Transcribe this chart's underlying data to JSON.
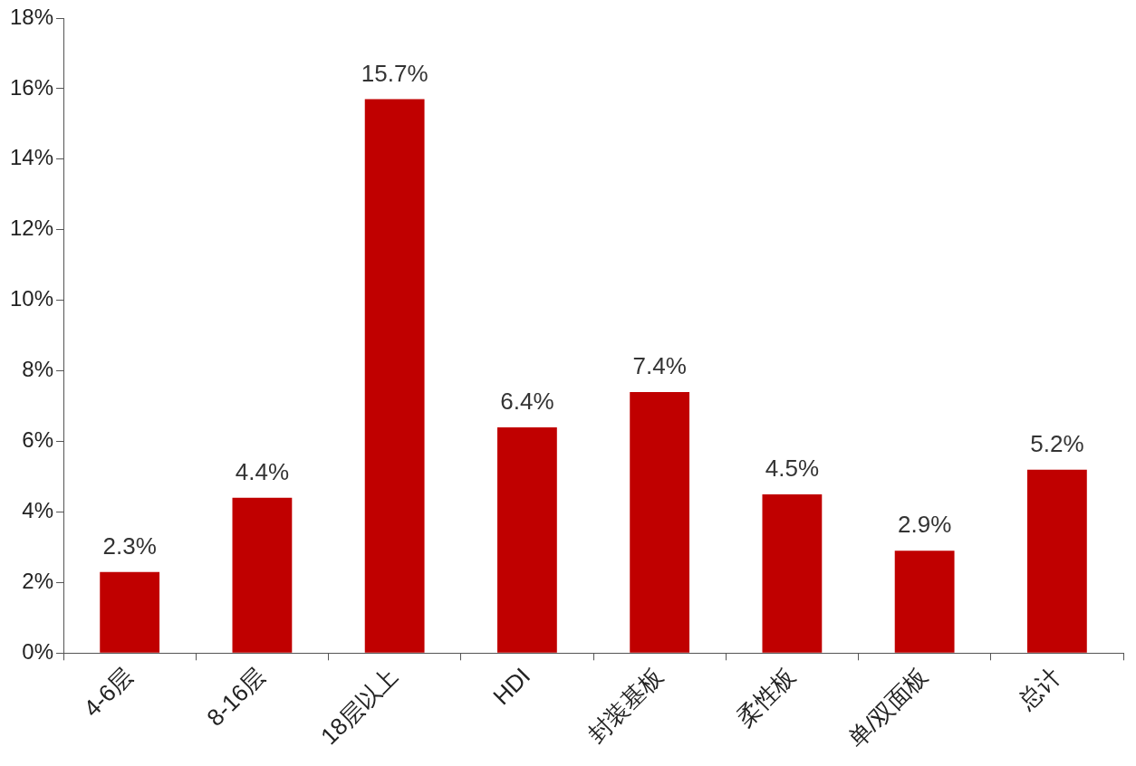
{
  "chart_data": {
    "type": "bar",
    "categories": [
      "4-6层",
      "8-16层",
      "18层以上",
      "HDI",
      "封装基板",
      "柔性板",
      "单/双面板",
      "总计"
    ],
    "values": [
      2.3,
      4.4,
      15.7,
      6.4,
      7.4,
      4.5,
      2.9,
      5.2
    ],
    "value_labels": [
      "2.3%",
      "4.4%",
      "15.7%",
      "6.4%",
      "7.4%",
      "4.5%",
      "2.9%",
      "5.2%"
    ],
    "color": "#c00000",
    "ylim": [
      0,
      18
    ],
    "yticks": [
      {
        "value": 0,
        "label": "0%"
      },
      {
        "value": 2,
        "label": "2%"
      },
      {
        "value": 4,
        "label": "4%"
      },
      {
        "value": 6,
        "label": "6%"
      },
      {
        "value": 8,
        "label": "8%"
      },
      {
        "value": 10,
        "label": "10%"
      },
      {
        "value": 12,
        "label": "12%"
      },
      {
        "value": 14,
        "label": "14%"
      },
      {
        "value": 16,
        "label": "16%"
      },
      {
        "value": 18,
        "label": "18%"
      }
    ]
  }
}
